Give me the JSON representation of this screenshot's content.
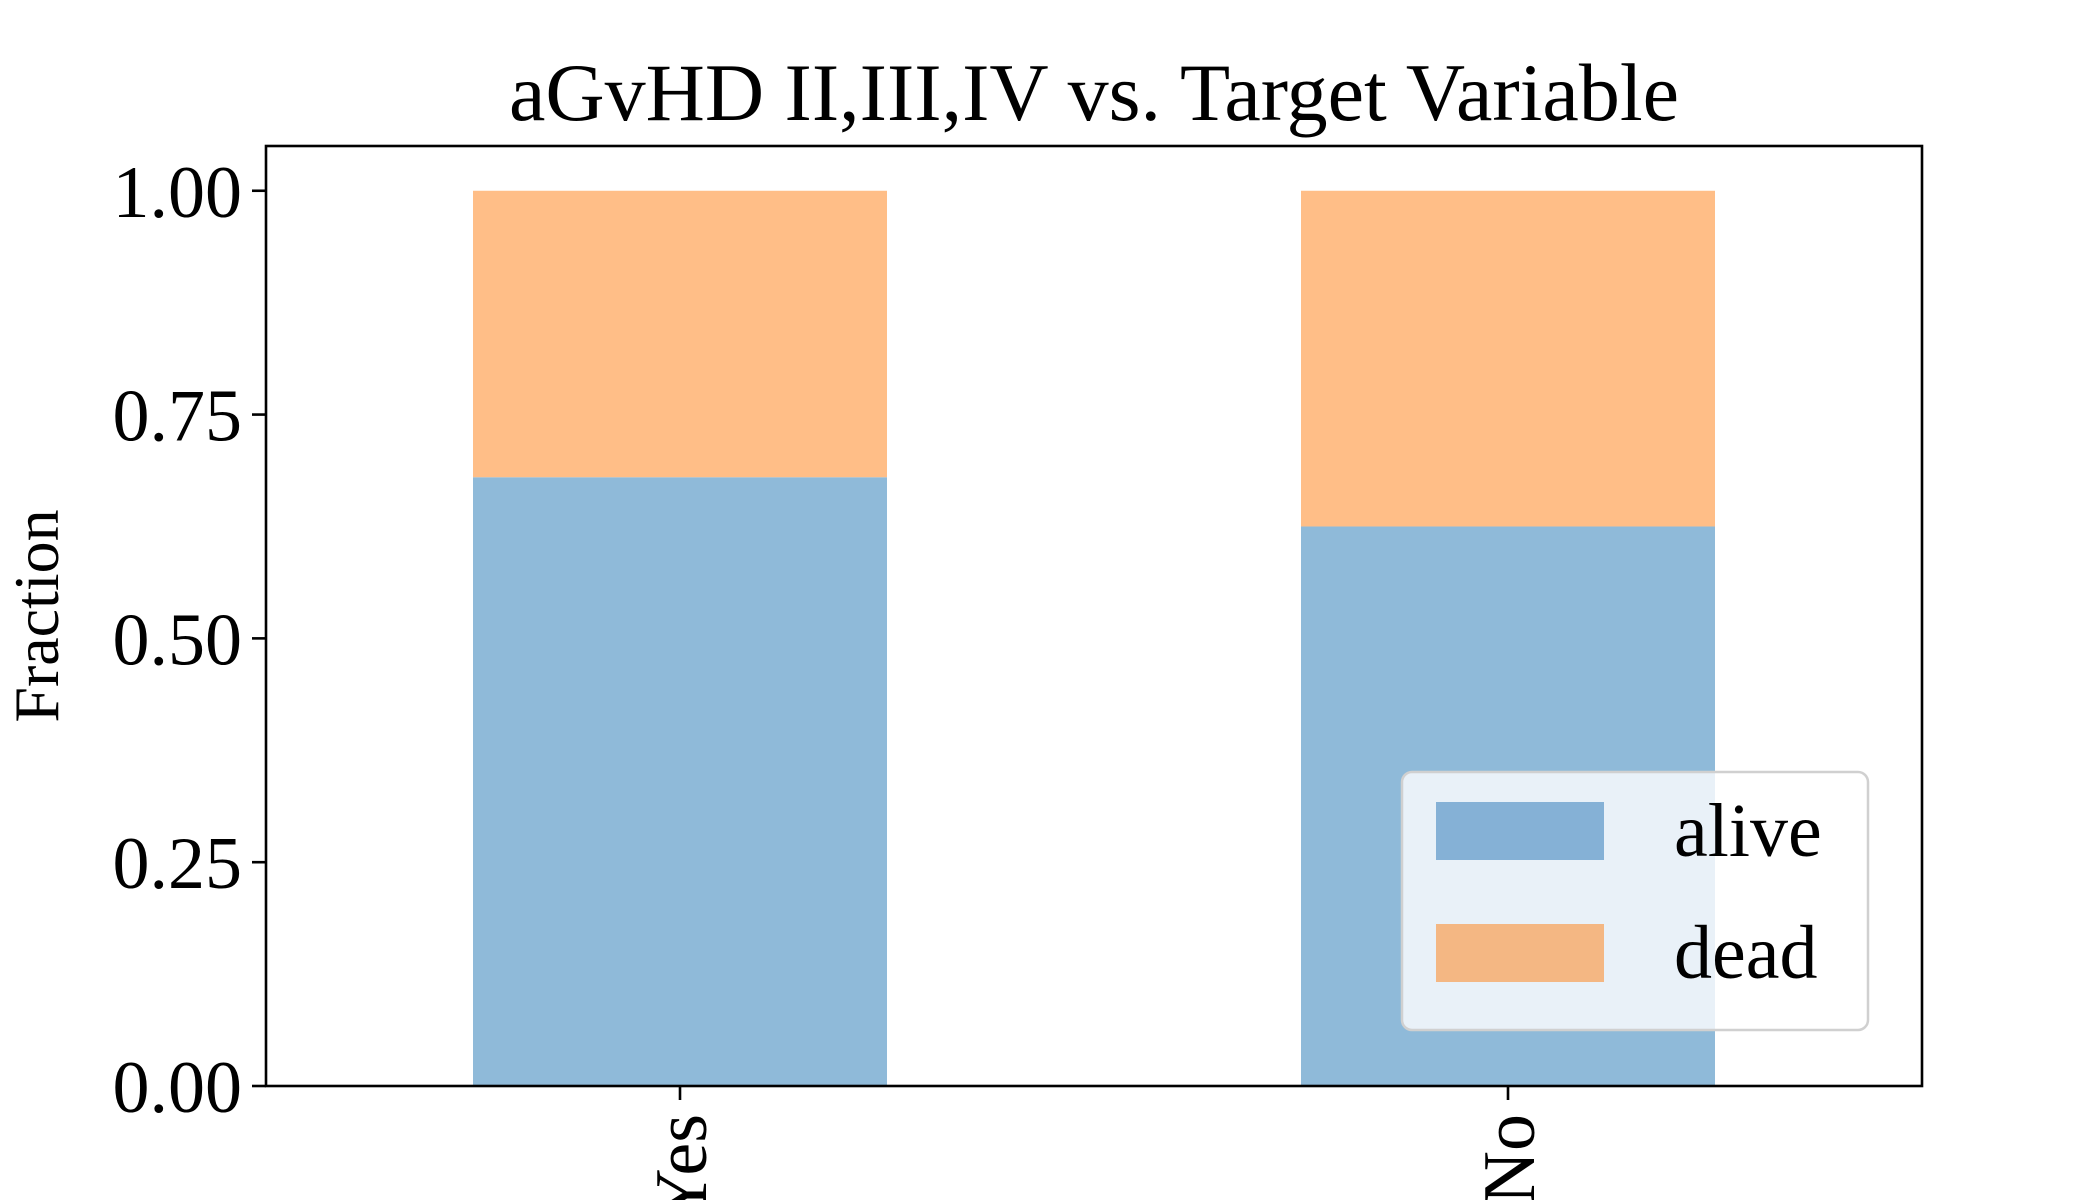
{
  "chart_data": {
    "type": "bar",
    "stacked": true,
    "title": "aGvHD II,III,IV vs. Target Variable",
    "xlabel": "",
    "ylabel": "Fraction",
    "categories": [
      "Yes",
      "No"
    ],
    "series": [
      {
        "name": "alive",
        "values": [
          0.68,
          0.625
        ],
        "color": "#8fbad9"
      },
      {
        "name": "dead",
        "values": [
          0.32,
          0.375
        ],
        "color": "#ffbe87"
      }
    ],
    "ylim": [
      0,
      1.05
    ],
    "yticks": [
      "0.00",
      "0.25",
      "0.50",
      "0.75",
      "1.00"
    ],
    "ytick_values": [
      0,
      0.25,
      0.5,
      0.75,
      1.0
    ],
    "legend": {
      "position": "lower-right",
      "swatch_colors": [
        "#85b1d6",
        "#f4b783"
      ]
    },
    "grid": false
  }
}
